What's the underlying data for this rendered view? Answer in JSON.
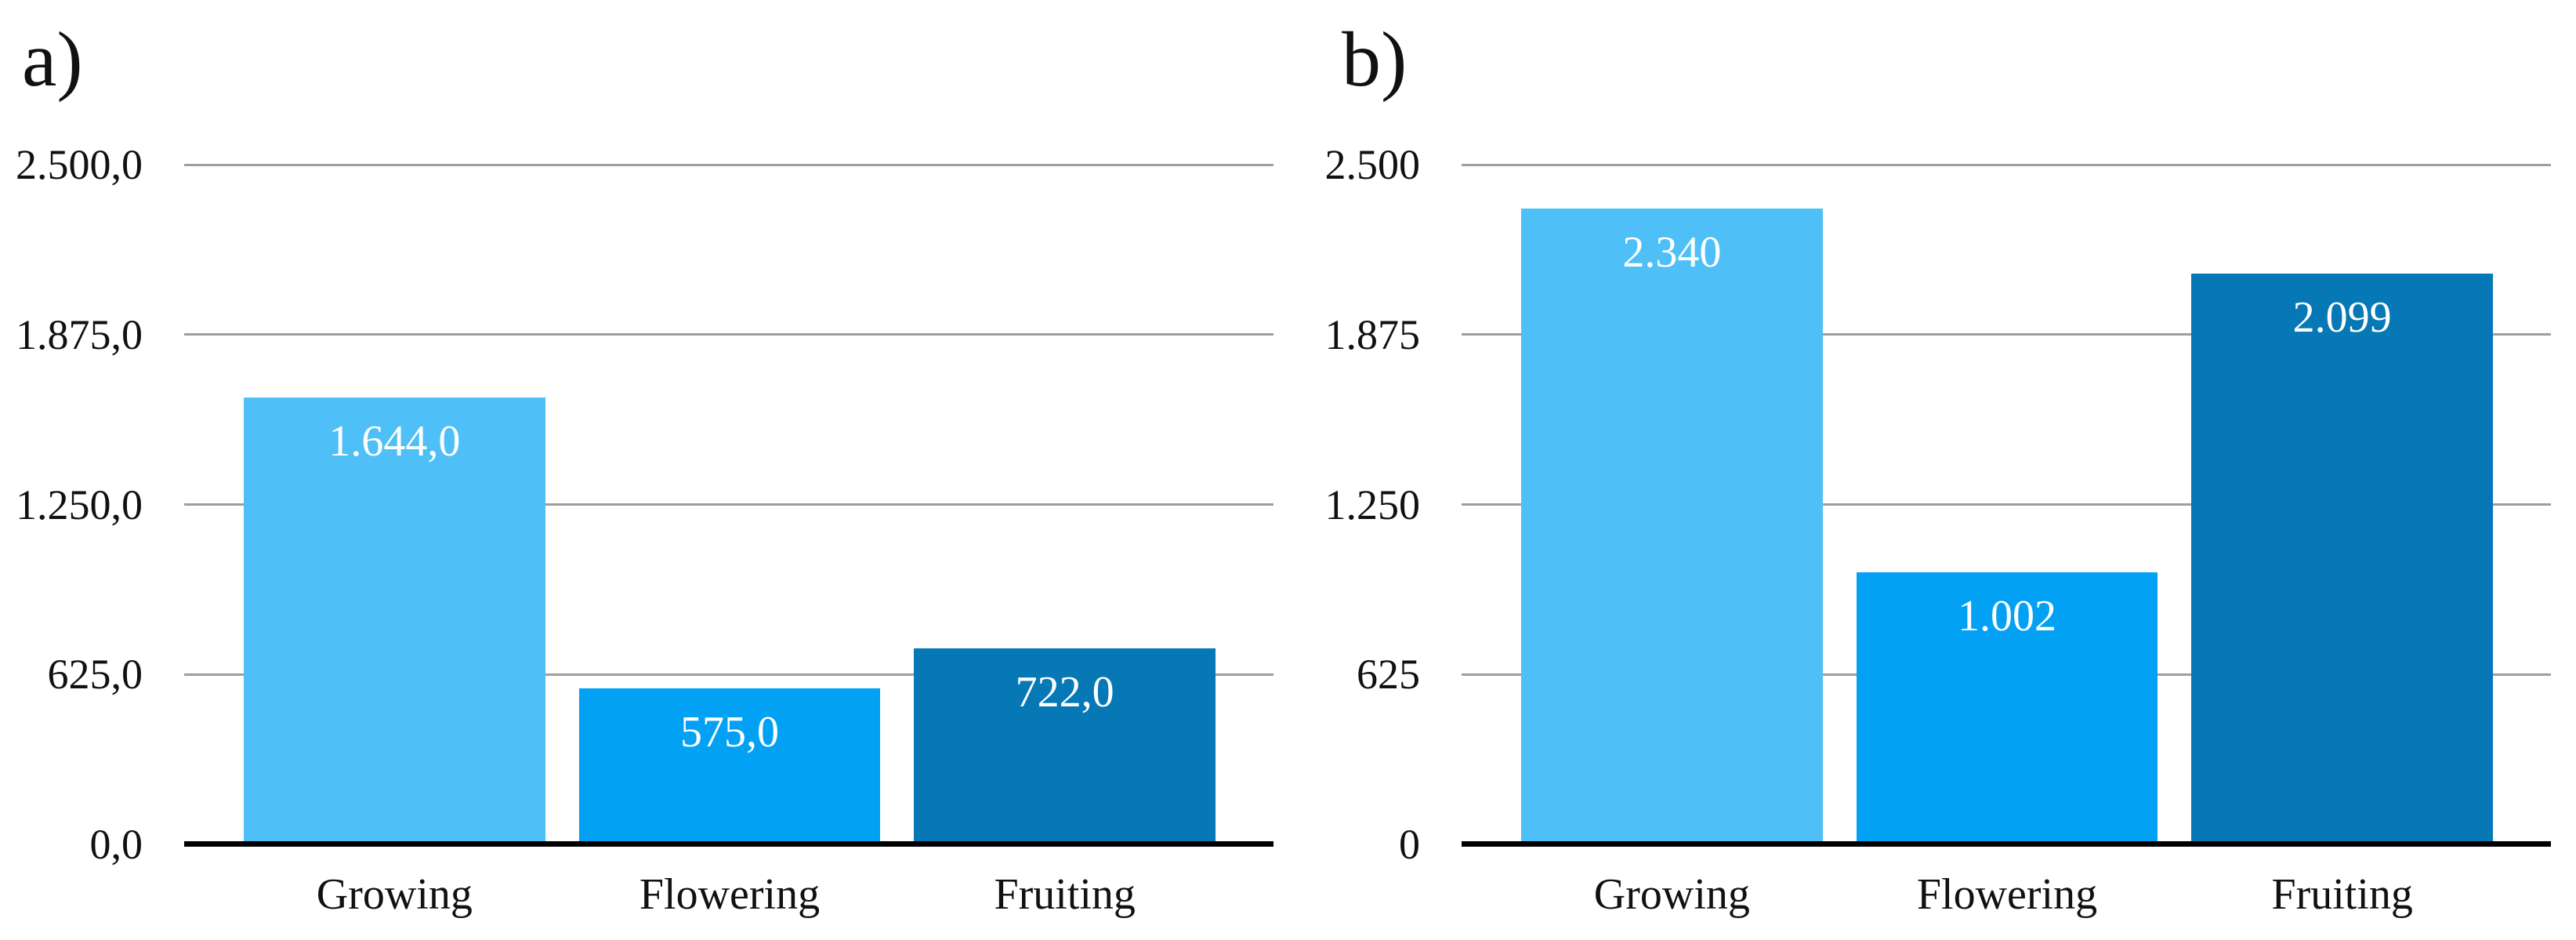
{
  "page": {
    "background": "#ffffff"
  },
  "style": {
    "gridline_color": "#9e9e9e",
    "axis_color": "#000000",
    "text_color": "#111111",
    "bar_value_label_color": "#ffffff"
  },
  "chart_data": [
    {
      "id": "a",
      "type": "bar",
      "panel_label": "a)",
      "categories": [
        "Growing",
        "Flowering",
        "Fruiting"
      ],
      "values": [
        1644.0,
        575.0,
        722.0
      ],
      "bar_value_labels": [
        "1.644,0",
        "575,0",
        "722,0"
      ],
      "bar_colors": [
        "#4fc0f7",
        "#03a1f4",
        "#0678b6"
      ],
      "ylim": [
        0,
        2500
      ],
      "y_ticks": [
        {
          "value": 0,
          "label": "0,0"
        },
        {
          "value": 625,
          "label": "625,0"
        },
        {
          "value": 1250,
          "label": "1.250,0"
        },
        {
          "value": 1875,
          "label": "1.875,0"
        },
        {
          "value": 2500,
          "label": "2.500,0"
        }
      ],
      "xlabel": "",
      "ylabel": "",
      "grid": "horizontal",
      "legend": "none"
    },
    {
      "id": "b",
      "type": "bar",
      "panel_label": "b)",
      "categories": [
        "Growing",
        "Flowering",
        "Fruiting"
      ],
      "values": [
        2340.0,
        1002.0,
        2099.0
      ],
      "bar_value_labels": [
        "2.340",
        "1.002",
        "2.099"
      ],
      "bar_colors": [
        "#4fc0f7",
        "#03a1f4",
        "#0678b6"
      ],
      "ylim": [
        0,
        2500
      ],
      "y_ticks": [
        {
          "value": 0,
          "label": "0"
        },
        {
          "value": 625,
          "label": "625"
        },
        {
          "value": 1250,
          "label": "1.250"
        },
        {
          "value": 1875,
          "label": "1.875"
        },
        {
          "value": 2500,
          "label": "2.500"
        }
      ],
      "xlabel": "",
      "ylabel": "",
      "grid": "horizontal",
      "legend": "none"
    }
  ]
}
